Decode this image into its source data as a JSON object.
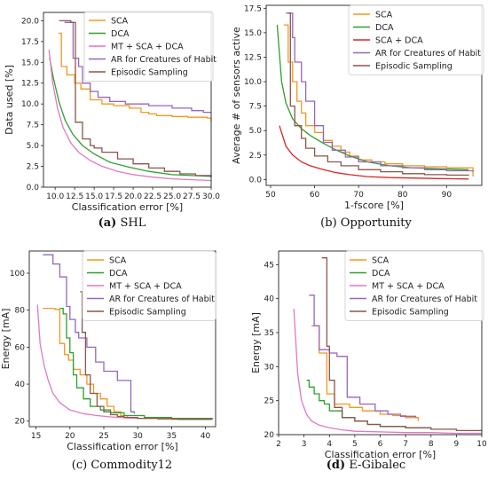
{
  "colors": {
    "SCA": "#f5961e",
    "DCA": "#2ca02c",
    "MT + SCA + DCA": "#e377c2",
    "SCA + DCA": "#d62728",
    "AR for Creatures of Habit": "#9467bd",
    "Episodic Sampling": "#8c564b"
  },
  "captions": [
    {
      "letter": "(a)",
      "text": "SHL"
    },
    {
      "letter": "(b)",
      "text": "Opportunity"
    },
    {
      "letter": "(c)",
      "text": "Commodity12"
    },
    {
      "letter": "(d)",
      "text": "E-Gibalec"
    }
  ],
  "chart_data": [
    {
      "type": "line",
      "xlabel": "Classification error [%]",
      "ylabel": "Data used [%]",
      "xlim": [
        8.5,
        30.0
      ],
      "ylim": [
        0,
        21
      ],
      "xticks": [
        "10.0",
        "12.5",
        "15.0",
        "17.5",
        "20.0",
        "22.5",
        "25.0",
        "27.5",
        "30.0"
      ],
      "yticks": [
        "0.0",
        "2.5",
        "5.0",
        "7.5",
        "10.0",
        "12.5",
        "15.0",
        "17.5",
        "20.0"
      ],
      "legend": "top-right",
      "series": [
        {
          "name": "SCA",
          "step": true,
          "x": [
            10.4,
            10.8,
            11.5,
            12.5,
            13.3,
            14.5,
            16,
            17.5,
            19.5,
            21,
            22,
            23,
            25,
            27,
            29.5,
            30
          ],
          "y": [
            18.5,
            14.5,
            13.5,
            12.5,
            11.8,
            10.5,
            10,
            9.8,
            9.5,
            9,
            8.8,
            8.6,
            8.5,
            8.4,
            8.3,
            7.9
          ]
        },
        {
          "name": "DCA",
          "step": false,
          "x": [
            9.3,
            9.8,
            10.5,
            11.3,
            12.3,
            13.5,
            15,
            17,
            19.5,
            22,
            25,
            27.5,
            30
          ],
          "y": [
            15.5,
            13,
            10.2,
            8,
            6.3,
            5,
            4,
            3,
            2.4,
            1.9,
            1.5,
            1.4,
            1.3
          ]
        },
        {
          "name": "MT + SCA + DCA",
          "step": false,
          "x": [
            9.2,
            9.7,
            10.3,
            11,
            12,
            13,
            14.5,
            16,
            18,
            20,
            22.5,
            25,
            27.5,
            30
          ],
          "y": [
            16.5,
            12.5,
            9.5,
            7.2,
            5.3,
            4.2,
            3.2,
            2.5,
            1.9,
            1.5,
            1.2,
            1,
            0.9,
            0.8
          ]
        },
        {
          "name": "AR for Creatures of Habit",
          "step": true,
          "x": [
            11.2,
            12.3,
            13,
            13.5,
            14.5,
            15.5,
            17,
            19,
            22,
            25,
            27.5,
            29,
            30
          ],
          "y": [
            19.8,
            15.5,
            14.5,
            12.5,
            11.5,
            10.8,
            10.3,
            10,
            9.8,
            9.5,
            9.2,
            9,
            9
          ]
        },
        {
          "name": "Episodic Sampling",
          "step": true,
          "x": [
            10.5,
            12,
            12.6,
            13.5,
            14.5,
            15,
            16,
            18,
            20,
            22,
            24,
            26,
            28,
            30
          ],
          "y": [
            20,
            19.8,
            7.8,
            5.8,
            5,
            4.7,
            4.2,
            3.4,
            2.8,
            2.3,
            1.9,
            1.6,
            1.4,
            1.2
          ]
        }
      ]
    },
    {
      "type": "line",
      "xlabel": "1-fscore [%]",
      "ylabel": "Average # of sensors active",
      "xlim": [
        49,
        98
      ],
      "ylim": [
        -0.6,
        17.8
      ],
      "xticks": [
        "50",
        "60",
        "70",
        "80",
        "90"
      ],
      "yticks": [
        "0.0",
        "2.5",
        "5.0",
        "7.5",
        "10.0",
        "12.5",
        "15.0",
        "17.5"
      ],
      "legend": "top-right",
      "series": [
        {
          "name": "SCA",
          "step": true,
          "x": [
            53,
            54,
            55,
            56,
            57,
            58,
            60,
            62,
            64,
            66,
            68,
            70,
            73,
            76,
            80,
            85,
            90,
            96
          ],
          "y": [
            15.8,
            12,
            10,
            8,
            6.8,
            5.5,
            4.8,
            4,
            3.4,
            2.8,
            2.4,
            2,
            1.8,
            1.6,
            1.4,
            1.3,
            1.2,
            0.3
          ]
        },
        {
          "name": "DCA",
          "step": false,
          "x": [
            51.5,
            52.5,
            53.5,
            55,
            57,
            59,
            62,
            65,
            68,
            72,
            77,
            82,
            88,
            95
          ],
          "y": [
            15.8,
            10,
            7.8,
            6.2,
            5.2,
            4.5,
            3.7,
            3,
            2.4,
            1.8,
            1.4,
            1.2,
            1.1,
            1
          ]
        },
        {
          "name": "SCA + DCA",
          "step": false,
          "x": [
            52,
            53.5,
            55,
            57,
            59,
            62,
            65,
            68,
            72,
            77,
            82,
            88,
            95
          ],
          "y": [
            5.5,
            3.4,
            2.5,
            1.8,
            1.4,
            1,
            0.7,
            0.5,
            0.3,
            0.2,
            0.15,
            0.1,
            0.05
          ]
        },
        {
          "name": "AR for Creatures of Habit",
          "step": true,
          "x": [
            53.5,
            55,
            55.5,
            57,
            58,
            60,
            62,
            64,
            67,
            70,
            75,
            80,
            85,
            90,
            96
          ],
          "y": [
            17,
            14.5,
            12,
            10,
            8,
            5.5,
            3.8,
            3,
            2.3,
            1.8,
            1.4,
            1.2,
            1,
            0.9,
            0.8
          ]
        },
        {
          "name": "Episodic Sampling",
          "step": true,
          "x": [
            54,
            54.5,
            55.5,
            57,
            58,
            60,
            63,
            66,
            70,
            75,
            80,
            85,
            90,
            95
          ],
          "y": [
            17,
            7.5,
            5.5,
            4.2,
            3.2,
            2.4,
            1.8,
            1.4,
            1,
            0.8,
            0.6,
            0.5,
            0.45,
            0.4
          ]
        }
      ]
    },
    {
      "type": "line",
      "xlabel": "Classification error [%]",
      "ylabel": "Energy [mA]",
      "xlim": [
        14,
        41.5
      ],
      "ylim": [
        17,
        112
      ],
      "xticks": [
        "15",
        "20",
        "25",
        "30",
        "35",
        "40"
      ],
      "yticks": [
        "20",
        "40",
        "60",
        "80",
        "100"
      ],
      "legend": "top-right",
      "series": [
        {
          "name": "SCA",
          "step": true,
          "x": [
            16,
            17.8,
            18.5,
            19.2,
            19.8,
            20.5,
            21.5,
            22.5,
            23.5,
            24.5,
            25.5,
            26.5,
            27.5,
            28.5,
            30,
            35,
            41
          ],
          "y": [
            81,
            80.5,
            62,
            56,
            53,
            48,
            45,
            40,
            35,
            32,
            28,
            25,
            23,
            22,
            21.5,
            21,
            21
          ]
        },
        {
          "name": "DCA",
          "step": true,
          "x": [
            18.5,
            19,
            19.5,
            20,
            20.5,
            21,
            22,
            23,
            24.5,
            26,
            28,
            31,
            35,
            41
          ],
          "y": [
            81,
            78,
            65,
            57,
            45,
            38,
            32,
            28,
            26,
            24.5,
            23,
            22,
            21.5,
            21
          ]
        },
        {
          "name": "MT + SCA + DCA",
          "step": false,
          "x": [
            15.2,
            15.6,
            16.2,
            16.8,
            17.5,
            18.5,
            20,
            22,
            24,
            26,
            28,
            30
          ],
          "y": [
            83,
            62,
            50,
            42,
            35,
            30,
            26,
            24,
            23,
            22.3,
            21.8,
            21.5
          ]
        },
        {
          "name": "AR for Creatures of Habit",
          "step": true,
          "x": [
            16,
            17.5,
            18.5,
            19.5,
            20,
            20.8,
            21.3,
            22.5,
            23.8,
            25,
            27,
            29,
            29.5
          ],
          "y": [
            110,
            105,
            98,
            82,
            75,
            68,
            65,
            60,
            52,
            47,
            42,
            25,
            24
          ]
        },
        {
          "name": "Episodic Sampling",
          "step": true,
          "x": [
            21.5,
            21.8,
            22.3,
            23,
            24,
            25,
            26,
            27,
            28,
            30,
            33,
            36,
            41
          ],
          "y": [
            90,
            68,
            45,
            35,
            28,
            25,
            23.5,
            22.5,
            22,
            21.5,
            21.2,
            21,
            21
          ]
        }
      ]
    },
    {
      "type": "line",
      "xlabel": "Classification error [%]",
      "ylabel": "Energy [mA]",
      "xlim": [
        2,
        10
      ],
      "ylim": [
        20,
        47
      ],
      "xticks": [
        "2",
        "3",
        "4",
        "5",
        "6",
        "7",
        "8",
        "9",
        "10"
      ],
      "yticks": [
        "20",
        "25",
        "30",
        "35",
        "40",
        "45"
      ],
      "legend": "top-right",
      "series": [
        {
          "name": "SCA",
          "step": true,
          "x": [
            3.3,
            3.6,
            3.9,
            4.2,
            4.8,
            5.3,
            6,
            6.5,
            7,
            7.5
          ],
          "y": [
            36,
            32,
            26,
            24.5,
            24,
            23.5,
            23,
            22.8,
            22.5,
            22
          ]
        },
        {
          "name": "DCA",
          "step": true,
          "x": [
            3.1,
            3.2,
            3.4,
            3.6,
            3.8,
            4,
            4.5,
            5,
            5.5,
            6,
            7,
            8
          ],
          "y": [
            28,
            27,
            26,
            25,
            24.5,
            23.5,
            22.5,
            22,
            21.5,
            21.2,
            21,
            20.8
          ]
        },
        {
          "name": "MT + SCA + DCA",
          "step": false,
          "x": [
            2.6,
            2.75,
            2.9,
            3.1,
            3.3,
            3.6,
            4,
            4.5,
            5,
            6,
            7,
            8,
            9,
            10
          ],
          "y": [
            38.5,
            29,
            25,
            23,
            22,
            21.4,
            21,
            20.7,
            20.5,
            20.4,
            20.3,
            20.3,
            20.2,
            20.2
          ]
        },
        {
          "name": "AR for Creatures of Habit",
          "step": true,
          "x": [
            3.2,
            3.4,
            3.6,
            4,
            4.3,
            4.7,
            5.2,
            5.8,
            6.3,
            6.8,
            7.4
          ],
          "y": [
            40.5,
            36,
            32.5,
            32,
            31.5,
            25.5,
            24.5,
            23.5,
            23,
            22.7,
            22.5
          ]
        },
        {
          "name": "Episodic Sampling",
          "step": true,
          "x": [
            3.7,
            3.9,
            4,
            4.2,
            4.5,
            5,
            5.5,
            6,
            7,
            8,
            9,
            10
          ],
          "y": [
            46,
            33,
            28,
            24,
            22.5,
            22,
            21.5,
            21.2,
            21,
            20.8,
            20.6,
            20.5
          ]
        }
      ]
    }
  ]
}
